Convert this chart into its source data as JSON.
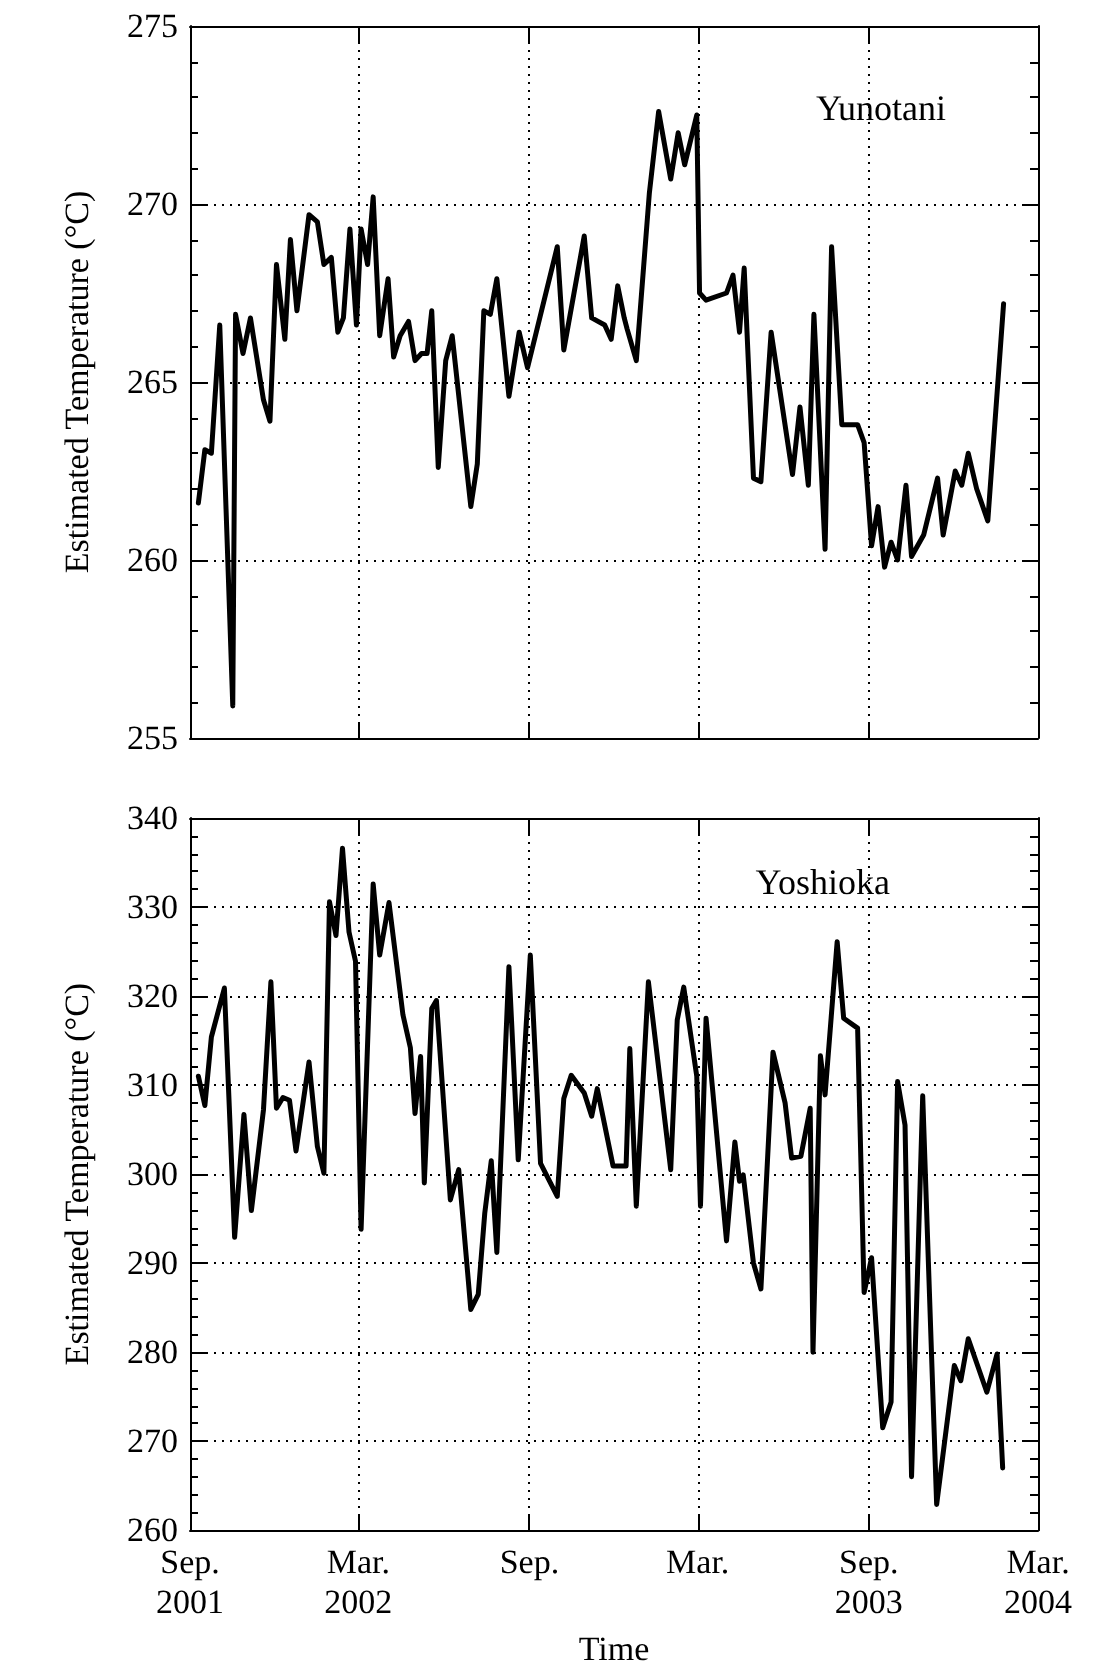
{
  "chart_data": [
    {
      "type": "line",
      "title": "Yunotani",
      "ylabel": "Estimated Temperature (°C)",
      "color": "#000000",
      "grid": true,
      "tick_labels": "y",
      "xlim": [
        "2001-09-01",
        "2004-03-01"
      ],
      "xticks": [
        {
          "value": "2001-09-01",
          "label": null
        },
        {
          "value": "2002-03-01",
          "label": null
        },
        {
          "value": "2002-09-01",
          "label": null
        },
        {
          "value": "2003-03-01",
          "label": null
        },
        {
          "value": "2003-09-01",
          "label": null
        },
        {
          "value": "2004-03-01",
          "label": null
        }
      ],
      "ylim": [
        255,
        275
      ],
      "yticks": [
        255,
        260,
        265,
        270,
        275
      ],
      "x": [
        "2001-09-10",
        "2001-09-17",
        "2001-09-24",
        "2001-10-03",
        "2001-10-17",
        "2001-10-20",
        "2001-10-28",
        "2001-11-05",
        "2001-11-19",
        "2001-11-26",
        "2001-12-03",
        "2001-12-12",
        "2001-12-18",
        "2001-12-25",
        "2002-01-07",
        "2002-01-16",
        "2002-01-23",
        "2002-01-31",
        "2002-02-07",
        "2002-02-13",
        "2002-02-20",
        "2002-02-27",
        "2002-03-04",
        "2002-03-11",
        "2002-03-17",
        "2002-03-24",
        "2002-04-02",
        "2002-04-08",
        "2002-04-15",
        "2002-04-24",
        "2002-05-01",
        "2002-05-08",
        "2002-05-14",
        "2002-05-19",
        "2002-05-26",
        "2002-06-03",
        "2002-06-10",
        "2002-06-30",
        "2002-07-07",
        "2002-07-14",
        "2002-07-21",
        "2002-07-28",
        "2002-08-10",
        "2002-08-21",
        "2002-08-30",
        "2002-10-01",
        "2002-10-08",
        "2002-10-30",
        "2002-11-07",
        "2002-11-21",
        "2002-11-28",
        "2002-12-05",
        "2002-12-12",
        "2002-12-15",
        "2002-12-25",
        "2003-01-08",
        "2003-01-18",
        "2003-01-31",
        "2003-02-08",
        "2003-02-15",
        "2003-02-28",
        "2003-03-03",
        "2003-03-10",
        "2003-04-01",
        "2003-04-08",
        "2003-04-15",
        "2003-04-20",
        "2003-04-30",
        "2003-05-08",
        "2003-05-19",
        "2003-06-11",
        "2003-06-19",
        "2003-06-28",
        "2003-07-04",
        "2003-07-16",
        "2003-07-23",
        "2003-08-03",
        "2003-08-20",
        "2003-08-27",
        "2003-09-04",
        "2003-09-11",
        "2003-09-18",
        "2003-09-25",
        "2003-10-02",
        "2003-10-11",
        "2003-10-17",
        "2003-10-30",
        "2003-11-14",
        "2003-11-20",
        "2003-12-03",
        "2003-12-10",
        "2003-12-17",
        "2003-12-26",
        "2004-01-07",
        "2004-01-24"
      ],
      "values": [
        261.6,
        263.1,
        263.0,
        266.6,
        255.9,
        266.9,
        265.8,
        266.8,
        264.5,
        263.9,
        268.3,
        266.2,
        269.0,
        267.0,
        269.7,
        269.5,
        268.3,
        268.5,
        266.4,
        266.8,
        269.3,
        266.6,
        269.3,
        268.3,
        270.2,
        266.3,
        267.9,
        265.7,
        266.3,
        266.7,
        265.6,
        265.8,
        265.8,
        267.0,
        262.6,
        265.6,
        266.3,
        261.5,
        262.7,
        267.0,
        266.9,
        267.9,
        264.6,
        266.4,
        265.4,
        268.8,
        265.9,
        269.1,
        266.8,
        266.6,
        266.2,
        267.7,
        266.8,
        266.5,
        265.6,
        270.3,
        272.6,
        270.7,
        272.0,
        271.1,
        272.5,
        267.5,
        267.3,
        267.5,
        268.0,
        266.4,
        268.2,
        262.3,
        262.2,
        266.4,
        262.4,
        264.3,
        262.1,
        266.9,
        260.3,
        268.8,
        263.8,
        263.8,
        263.3,
        260.4,
        261.5,
        259.8,
        260.5,
        260.0,
        262.1,
        260.1,
        260.7,
        262.3,
        260.7,
        262.5,
        262.1,
        263.0,
        262.0,
        261.1,
        267.2
      ]
    },
    {
      "type": "line",
      "title": "Yoshioka",
      "xlabel": "Time",
      "ylabel": "Estimated Temperature (°C)",
      "color": "#000000",
      "grid": true,
      "xlim": [
        "2001-09-01",
        "2004-03-01"
      ],
      "xticks": [
        {
          "value": "2001-09-01",
          "label": "Sep.\n2001"
        },
        {
          "value": "2002-03-01",
          "label": "Mar.\n2002"
        },
        {
          "value": "2002-09-01",
          "label": "Sep."
        },
        {
          "value": "2003-03-01",
          "label": "Mar."
        },
        {
          "value": "2003-09-01",
          "label": "Sep.\n2003"
        },
        {
          "value": "2004-03-01",
          "label": "Mar.\n2004"
        }
      ],
      "ylim": [
        260,
        340
      ],
      "yticks": [
        260,
        270,
        280,
        290,
        300,
        310,
        320,
        330,
        340
      ],
      "x": [
        "2001-09-10",
        "2001-09-17",
        "2001-09-24",
        "2001-10-08",
        "2001-10-19",
        "2001-10-29",
        "2001-11-06",
        "2001-11-19",
        "2001-11-27",
        "2001-12-03",
        "2001-12-10",
        "2001-12-17",
        "2001-12-24",
        "2002-01-07",
        "2002-01-16",
        "2002-01-23",
        "2002-01-29",
        "2002-02-05",
        "2002-02-12",
        "2002-02-19",
        "2002-02-26",
        "2002-03-04",
        "2002-03-17",
        "2002-03-24",
        "2002-04-03",
        "2002-04-18",
        "2002-04-26",
        "2002-05-01",
        "2002-05-07",
        "2002-05-11",
        "2002-05-19",
        "2002-05-24",
        "2002-06-08",
        "2002-06-17",
        "2002-06-30",
        "2002-07-08",
        "2002-07-15",
        "2002-07-22",
        "2002-07-28",
        "2002-08-10",
        "2002-08-20",
        "2002-09-02",
        "2002-09-13",
        "2002-10-01",
        "2002-10-08",
        "2002-10-16",
        "2002-10-30",
        "2002-11-07",
        "2002-11-13",
        "2002-11-30",
        "2002-12-14",
        "2002-12-18",
        "2002-12-25",
        "2003-01-07",
        "2003-01-31",
        "2003-02-07",
        "2003-02-14",
        "2003-02-28",
        "2003-03-04",
        "2003-03-10",
        "2003-04-01",
        "2003-04-10",
        "2003-04-15",
        "2003-04-19",
        "2003-04-30",
        "2003-05-08",
        "2003-05-21",
        "2003-06-03",
        "2003-06-10",
        "2003-06-20",
        "2003-06-30",
        "2003-07-03",
        "2003-07-11",
        "2003-07-16",
        "2003-07-29",
        "2003-08-05",
        "2003-08-20",
        "2003-08-27",
        "2003-09-04",
        "2003-09-16",
        "2003-09-25",
        "2003-10-02",
        "2003-10-10",
        "2003-10-17",
        "2003-10-29",
        "2003-11-13",
        "2003-12-02",
        "2003-12-09",
        "2003-12-17",
        "2004-01-06",
        "2004-01-17",
        "2004-01-23"
      ],
      "values": [
        311.0,
        307.7,
        315.4,
        320.9,
        292.9,
        306.7,
        295.9,
        307.2,
        321.6,
        307.4,
        308.6,
        308.3,
        302.6,
        312.6,
        303.1,
        300.1,
        330.6,
        326.8,
        336.6,
        327.2,
        323.9,
        293.8,
        332.6,
        324.6,
        330.5,
        317.9,
        314.2,
        306.8,
        313.2,
        299.0,
        318.6,
        319.5,
        297.1,
        300.5,
        284.8,
        286.5,
        295.6,
        301.5,
        291.2,
        323.3,
        301.6,
        324.6,
        301.2,
        297.5,
        308.5,
        311.1,
        309.1,
        306.5,
        309.6,
        300.9,
        300.9,
        314.1,
        296.4,
        321.6,
        300.5,
        317.3,
        321.0,
        311.0,
        296.4,
        317.5,
        292.5,
        303.6,
        299.2,
        299.9,
        290.0,
        287.1,
        313.7,
        308.0,
        301.8,
        302.0,
        307.4,
        280.0,
        313.3,
        308.9,
        326.1,
        317.5,
        316.4,
        286.7,
        290.6,
        271.5,
        274.4,
        310.4,
        305.5,
        266.0,
        308.8,
        262.9,
        278.5,
        276.8,
        281.5,
        275.5,
        279.8,
        267.0
      ]
    }
  ]
}
